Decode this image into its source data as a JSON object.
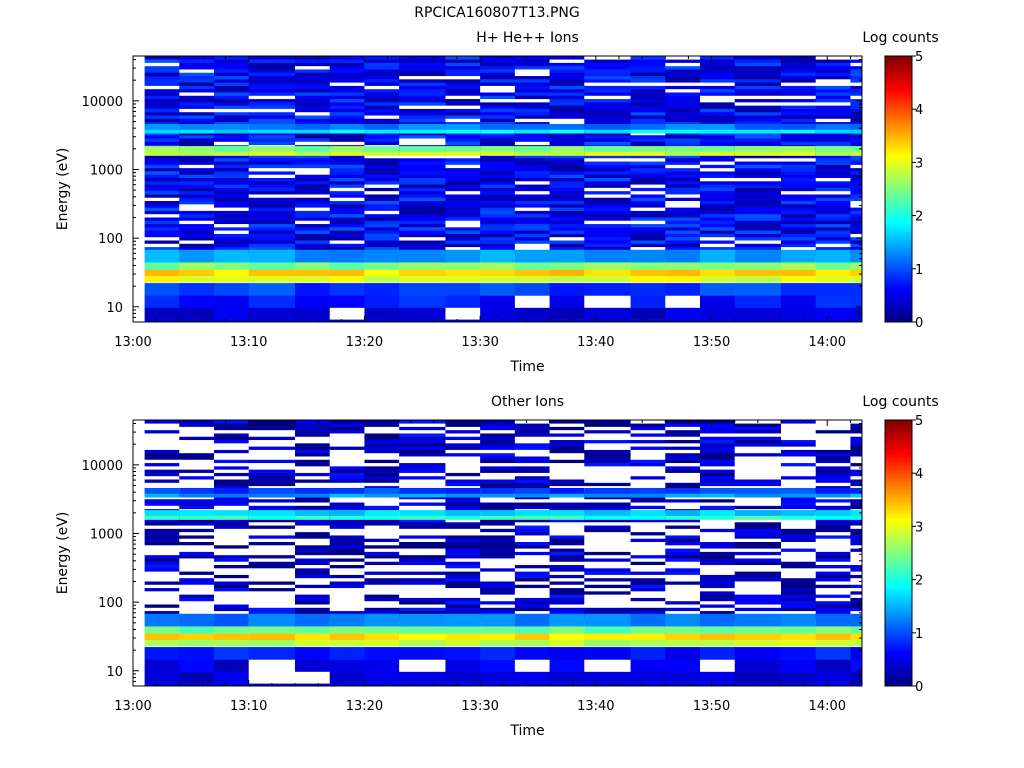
{
  "page": {
    "title": "RPCICA160807T13.PNG"
  },
  "colors": {
    "colormap": [
      "#000080",
      "#0000ff",
      "#0080ff",
      "#00ffff",
      "#80ff80",
      "#ffff00",
      "#ff8000",
      "#ff0000",
      "#800000"
    ],
    "missing": "#ffffff"
  },
  "chart_data": [
    {
      "type": "heatmap",
      "title": "H+ He++ Ions",
      "xlabel": "Time",
      "ylabel": "Energy (eV)",
      "xticks": [
        "13:00",
        "13:10",
        "13:20",
        "13:30",
        "13:40",
        "13:50",
        "14:00"
      ],
      "xlim": [
        "13:00",
        "14:03"
      ],
      "yscale": "log",
      "ylim": [
        6,
        45000
      ],
      "yticks": [
        "10",
        "100",
        "1000",
        "10000"
      ],
      "colorbar": {
        "label": "Log counts",
        "range": [
          0,
          5
        ],
        "ticks": [
          "0",
          "1",
          "2",
          "3",
          "4",
          "5"
        ]
      },
      "time_bins": [
        "13:01",
        "13:04",
        "13:07",
        "13:10",
        "13:14",
        "13:17",
        "13:20",
        "13:23",
        "13:27",
        "13:30",
        "13:33",
        "13:36",
        "13:39",
        "13:43",
        "13:46",
        "13:49",
        "13:52",
        "13:56",
        "13:59",
        "14:02"
      ],
      "energy_bands": [
        {
          "energy_eV": 8,
          "value": 0.4,
          "gaps": [
            5,
            8
          ]
        },
        {
          "energy_eV": 12,
          "value": 0.7,
          "gaps": [
            10,
            12,
            14
          ]
        },
        {
          "energy_eV": 18,
          "value": 0.9
        },
        {
          "energy_eV": 28,
          "value": 3.0
        },
        {
          "energy_eV": 35,
          "value": 3.3
        },
        {
          "energy_eV": 43,
          "value": 2.5
        },
        {
          "energy_eV": 55,
          "value": 1.4
        },
        {
          "energy_eV": 1750,
          "value": 2.9
        },
        {
          "energy_eV": 2000,
          "value": 2.5
        },
        {
          "energy_eV": 3700,
          "value": 1.8
        },
        {
          "energy_eV": 4200,
          "value": 1.2
        }
      ],
      "background_value": 0.6,
      "background_above_eV": 60,
      "background_missing_fraction": 0.12
    },
    {
      "type": "heatmap",
      "title": "Other Ions",
      "xlabel": "Time",
      "ylabel": "Energy (eV)",
      "xticks": [
        "13:00",
        "13:10",
        "13:20",
        "13:30",
        "13:40",
        "13:50",
        "14:00"
      ],
      "xlim": [
        "13:00",
        "14:03"
      ],
      "yscale": "log",
      "ylim": [
        6,
        45000
      ],
      "yticks": [
        "10",
        "100",
        "1000",
        "10000"
      ],
      "colorbar": {
        "label": "Log counts",
        "range": [
          0,
          5
        ],
        "ticks": [
          "0",
          "1",
          "2",
          "3",
          "4",
          "5"
        ]
      },
      "time_bins": [
        "13:01",
        "13:04",
        "13:07",
        "13:10",
        "13:14",
        "13:17",
        "13:20",
        "13:23",
        "13:27",
        "13:30",
        "13:33",
        "13:36",
        "13:39",
        "13:43",
        "13:46",
        "13:49",
        "13:52",
        "13:56",
        "13:59",
        "14:02"
      ],
      "energy_bands": [
        {
          "energy_eV": 8,
          "value": 0.4,
          "gaps": [
            3,
            4
          ]
        },
        {
          "energy_eV": 12,
          "value": 0.5,
          "gaps": [
            3,
            7,
            10,
            12,
            15
          ]
        },
        {
          "energy_eV": 18,
          "value": 0.7
        },
        {
          "energy_eV": 28,
          "value": 2.8
        },
        {
          "energy_eV": 35,
          "value": 3.3
        },
        {
          "energy_eV": 43,
          "value": 2.4
        },
        {
          "energy_eV": 55,
          "value": 1.2
        },
        {
          "energy_eV": 1750,
          "value": 2.1
        },
        {
          "energy_eV": 2000,
          "value": 1.6
        },
        {
          "energy_eV": 3700,
          "value": 1.4
        },
        {
          "energy_eV": 4200,
          "value": 0.9
        }
      ],
      "background_value": 0.3,
      "background_above_eV": 60,
      "background_missing_fraction": 0.45
    }
  ]
}
